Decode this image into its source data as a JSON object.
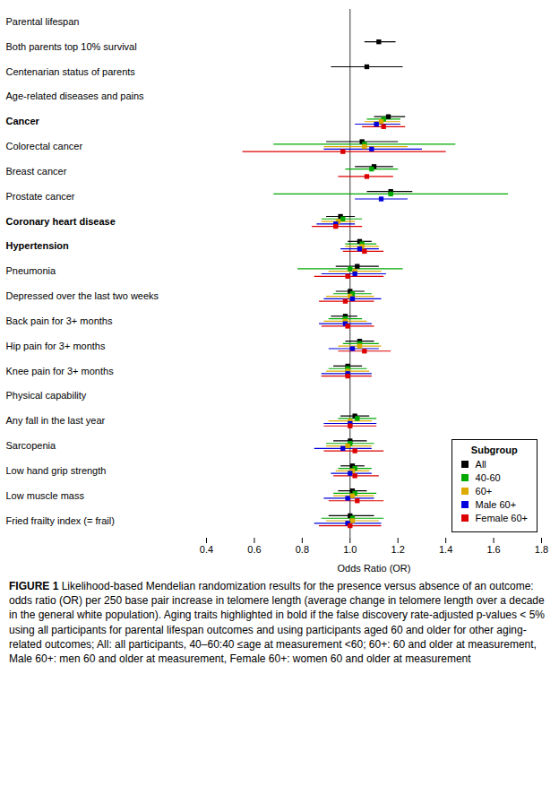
{
  "chart_data": {
    "type": "forest",
    "categories": [
      "Parental lifespan",
      "Both parents top 10% survival",
      "Centenarian status of parents",
      "Age-related diseases and pains",
      "Cancer",
      "Colorectal cancer",
      "Breast cancer",
      "Prostate cancer",
      "Coronary heart disease",
      "Hypertension",
      "Pneumonia",
      "Depressed over the last two weeks",
      "Back pain for 3+ months",
      "Hip pain for 3+ months",
      "Knee pain for 3+ months",
      "Physical capability",
      "Any fall in the last year",
      "Sarcopenia",
      "Low hand grip strength",
      "Low muscle mass",
      "Fried frailty index (= frail)"
    ],
    "bold": [
      false,
      false,
      false,
      false,
      true,
      false,
      false,
      false,
      true,
      true,
      false,
      false,
      false,
      false,
      false,
      false,
      false,
      false,
      false,
      false,
      false
    ],
    "series": [
      {
        "name": "All",
        "color": "#000000",
        "values": [
          null,
          1.12,
          1.07,
          null,
          1.16,
          1.05,
          1.1,
          1.17,
          0.96,
          1.04,
          1.03,
          1.0,
          0.98,
          1.04,
          0.99,
          null,
          1.02,
          1.0,
          1.01,
          1.01,
          1.0
        ],
        "lower": [
          null,
          1.06,
          0.92,
          null,
          1.1,
          0.9,
          1.02,
          1.07,
          0.9,
          0.99,
          0.94,
          0.94,
          0.92,
          0.98,
          0.93,
          null,
          0.96,
          0.93,
          0.96,
          0.95,
          0.91
        ],
        "upper": [
          null,
          1.19,
          1.22,
          null,
          1.23,
          1.2,
          1.18,
          1.26,
          1.02,
          1.09,
          1.12,
          1.06,
          1.03,
          1.1,
          1.05,
          null,
          1.08,
          1.07,
          1.06,
          1.07,
          1.1
        ]
      },
      {
        "name": "40-60",
        "color": "#00aa00",
        "values": [
          null,
          null,
          null,
          null,
          1.14,
          1.06,
          1.09,
          1.17,
          0.97,
          1.05,
          1.0,
          1.01,
          0.98,
          1.04,
          0.99,
          null,
          1.03,
          1.0,
          1.02,
          1.02,
          1.01
        ],
        "lower": [
          null,
          null,
          null,
          null,
          1.07,
          0.68,
          0.98,
          0.68,
          0.88,
          0.98,
          0.78,
          0.93,
          0.91,
          0.97,
          0.91,
          null,
          0.95,
          0.9,
          0.95,
          0.93,
          0.88
        ],
        "upper": [
          null,
          null,
          null,
          null,
          1.21,
          1.44,
          1.2,
          1.66,
          1.05,
          1.11,
          1.22,
          1.09,
          1.05,
          1.12,
          1.07,
          null,
          1.11,
          1.1,
          1.09,
          1.11,
          1.14
        ]
      },
      {
        "name": "60+",
        "color": "#ddaa00",
        "values": [
          null,
          null,
          null,
          null,
          1.13,
          1.06,
          null,
          null,
          0.95,
          1.05,
          1.02,
          1.0,
          0.98,
          1.04,
          0.99,
          null,
          1.0,
          0.99,
          1.01,
          1.01,
          1.01
        ],
        "lower": [
          null,
          null,
          null,
          null,
          1.06,
          0.89,
          null,
          null,
          0.88,
          0.98,
          0.91,
          0.9,
          0.89,
          0.95,
          0.9,
          null,
          0.91,
          0.9,
          0.94,
          0.93,
          0.9
        ],
        "upper": [
          null,
          null,
          null,
          null,
          1.21,
          1.24,
          null,
          null,
          1.02,
          1.12,
          1.13,
          1.1,
          1.07,
          1.13,
          1.08,
          null,
          1.09,
          1.09,
          1.08,
          1.1,
          1.12
        ]
      },
      {
        "name": "Male 60+",
        "color": "#0000dd",
        "values": [
          null,
          null,
          null,
          null,
          1.11,
          1.09,
          null,
          1.13,
          0.94,
          1.04,
          1.02,
          1.01,
          0.98,
          1.01,
          0.99,
          null,
          1.0,
          0.97,
          1.0,
          0.99,
          0.99
        ],
        "lower": [
          null,
          null,
          null,
          null,
          1.02,
          0.89,
          null,
          1.02,
          0.86,
          0.96,
          0.88,
          0.89,
          0.87,
          0.91,
          0.88,
          null,
          0.89,
          0.85,
          0.92,
          0.89,
          0.85
        ],
        "upper": [
          null,
          null,
          null,
          null,
          1.21,
          1.3,
          null,
          1.24,
          1.02,
          1.12,
          1.15,
          1.13,
          1.09,
          1.12,
          1.09,
          null,
          1.11,
          1.09,
          1.09,
          1.1,
          1.13
        ]
      },
      {
        "name": "Female 60+",
        "color": "#dd0000",
        "values": [
          null,
          null,
          null,
          null,
          1.14,
          0.97,
          1.07,
          null,
          0.94,
          1.06,
          0.99,
          0.98,
          0.99,
          1.06,
          0.99,
          null,
          1.0,
          1.02,
          1.02,
          1.03,
          1.0
        ],
        "lower": [
          null,
          null,
          null,
          null,
          1.05,
          0.55,
          0.95,
          null,
          0.84,
          0.97,
          0.85,
          0.87,
          0.88,
          0.95,
          0.88,
          null,
          0.89,
          0.89,
          0.93,
          0.91,
          0.87
        ],
        "upper": [
          null,
          null,
          null,
          null,
          1.23,
          1.4,
          1.18,
          null,
          1.05,
          1.14,
          1.14,
          1.1,
          1.1,
          1.17,
          1.09,
          null,
          1.11,
          1.14,
          1.12,
          1.14,
          1.13
        ]
      }
    ],
    "xlabel": "Odds Ratio (OR)",
    "xlim": [
      0.4,
      1.8
    ],
    "xticks": [
      0.4,
      0.6,
      0.8,
      {
        "value": 1.0,
        "label": "1.0"
      },
      1.2,
      1.4,
      1.6,
      1.8
    ],
    "vline": 1.0,
    "grid": false,
    "legend": "lower right",
    "legend_title": "Subgroup",
    "caption_title": "FIGURE 1",
    "caption": "  Likelihood-based Mendelian randomization results for the presence versus absence of an outcome: odds ratio (OR) per 250 base pair increase in telomere length (average change in telomere length over a decade in the general white population). Aging traits highlighted in bold if the false discovery rate-adjusted p-values < 5% using all participants for parental lifespan outcomes and using participants aged 60 and older for other aging-related outcomes; All: all participants, 40–60:40 ≤age at measurement <60; 60+: 60 and older at measurement, Male 60+: men 60 and older at measurement, Female 60+: women 60 and older at measurement"
  }
}
